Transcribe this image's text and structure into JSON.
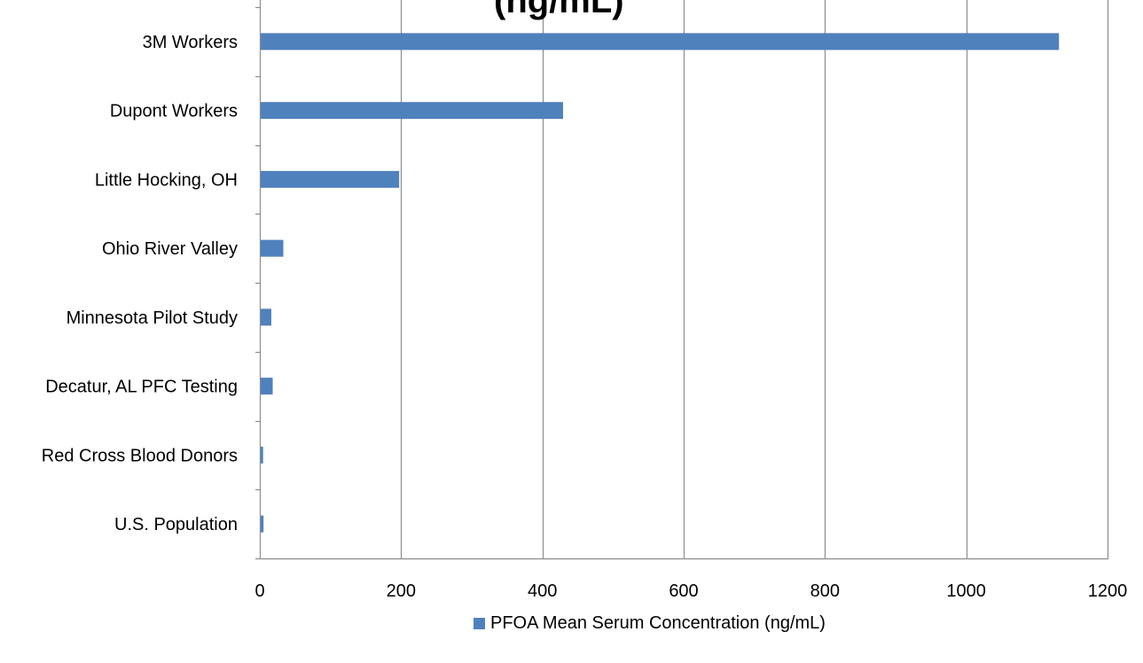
{
  "chart_data": {
    "type": "bar",
    "orientation": "horizontal",
    "title": "(ng/mL)",
    "categories": [
      "3M Workers",
      "Dupont Workers",
      "Little Hocking, OH",
      "Ohio River Valley",
      "Minnesota Pilot Study",
      "Decatur, AL PFC Testing",
      "Red Cross Blood Donors",
      "U.S. Population"
    ],
    "series": [
      {
        "name": "PFOA Mean Serum Concentration (ng/mL)",
        "values": [
          1130,
          428,
          196,
          32,
          15,
          17,
          3.4,
          4
        ],
        "color": "#4F81BD"
      }
    ],
    "xlim": [
      0,
      1200
    ],
    "xticks": [
      0,
      200,
      400,
      600,
      800,
      1000,
      1200
    ],
    "grid": true,
    "legend_position": "bottom"
  }
}
